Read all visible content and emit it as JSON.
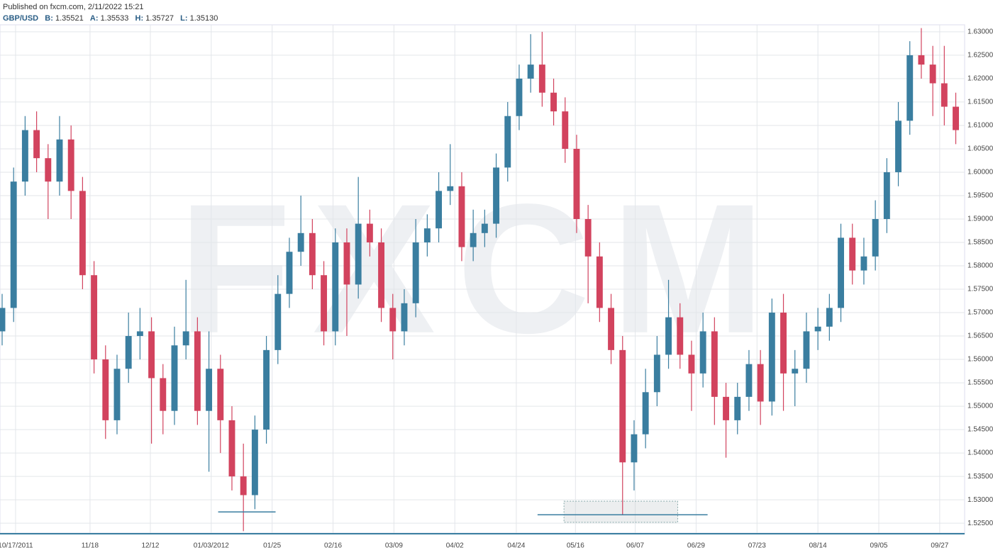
{
  "header": {
    "published": "Published on fxcm.com, 2/11/2022 15:21",
    "symbol": "GBP/USD",
    "bid_label": "B:",
    "bid": "1.35521",
    "ask_label": "A:",
    "ask": "1.35533",
    "high_label": "H:",
    "high": "1.35727",
    "low_label": "L:",
    "low": "1.35130"
  },
  "chart_data": {
    "type": "candlestick",
    "watermark": "FXCM",
    "up_color": "#3a7ea0",
    "down_color": "#d2435e",
    "grid": true,
    "xlim": [
      -0.185,
      83.77
    ],
    "xticks": [
      {
        "value": 1.17,
        "label": "10/17/2011"
      },
      {
        "value": 7.65,
        "label": "11/18"
      },
      {
        "value": 12.9,
        "label": "12/12"
      },
      {
        "value": 18.2,
        "label": "01/03/2012"
      },
      {
        "value": 23.5,
        "label": "01/25"
      },
      {
        "value": 28.8,
        "label": "02/16"
      },
      {
        "value": 34.1,
        "label": "03/09"
      },
      {
        "value": 39.4,
        "label": "04/02"
      },
      {
        "value": 44.75,
        "label": "04/24"
      },
      {
        "value": 49.9,
        "label": "05/16"
      },
      {
        "value": 55.1,
        "label": "06/07"
      },
      {
        "value": 60.4,
        "label": "06/29"
      },
      {
        "value": 65.7,
        "label": "07/23"
      },
      {
        "value": 71.0,
        "label": "08/14"
      },
      {
        "value": 76.3,
        "label": "09/05"
      },
      {
        "value": 81.6,
        "label": "09/27"
      }
    ],
    "ylim": [
      1.5229,
      1.6315
    ],
    "yticks": [
      {
        "value": 1.525,
        "label": "1.52500"
      },
      {
        "value": 1.53,
        "label": "1.53000"
      },
      {
        "value": 1.535,
        "label": "1.53500"
      },
      {
        "value": 1.54,
        "label": "1.54000"
      },
      {
        "value": 1.545,
        "label": "1.54500"
      },
      {
        "value": 1.55,
        "label": "1.55000"
      },
      {
        "value": 1.555,
        "label": "1.55500"
      },
      {
        "value": 1.56,
        "label": "1.56000"
      },
      {
        "value": 1.565,
        "label": "1.56500"
      },
      {
        "value": 1.57,
        "label": "1.57000"
      },
      {
        "value": 1.575,
        "label": "1.57500"
      },
      {
        "value": 1.58,
        "label": "1.58000"
      },
      {
        "value": 1.585,
        "label": "1.58500"
      },
      {
        "value": 1.59,
        "label": "1.59000"
      },
      {
        "value": 1.595,
        "label": "1.59500"
      },
      {
        "value": 1.6,
        "label": "1.60000"
      },
      {
        "value": 1.605,
        "label": "1.60500"
      },
      {
        "value": 1.61,
        "label": "1.61000"
      },
      {
        "value": 1.615,
        "label": "1.61500"
      },
      {
        "value": 1.62,
        "label": "1.62000"
      },
      {
        "value": 1.625,
        "label": "1.62500"
      },
      {
        "value": 1.63,
        "label": "1.63000"
      }
    ],
    "open": [
      1.566,
      1.571,
      1.598,
      1.609,
      1.603,
      1.598,
      1.607,
      1.596,
      1.578,
      1.56,
      1.547,
      1.558,
      1.565,
      1.566,
      1.556,
      1.549,
      1.563,
      1.566,
      1.549,
      1.558,
      1.547,
      1.535,
      1.531,
      1.545,
      1.562,
      1.574,
      1.583,
      1.587,
      1.578,
      1.566,
      1.585,
      1.576,
      1.589,
      1.585,
      1.571,
      1.566,
      1.572,
      1.585,
      1.588,
      1.596,
      1.597,
      1.584,
      1.587,
      1.589,
      1.601,
      1.612,
      1.62,
      1.623,
      1.617,
      1.613,
      1.605,
      1.59,
      1.582,
      1.571,
      1.562,
      1.538,
      1.544,
      1.553,
      1.561,
      1.569,
      1.561,
      1.557,
      1.566,
      1.552,
      1.547,
      1.552,
      1.559,
      1.551,
      1.57,
      1.557,
      1.558,
      1.566,
      1.567,
      1.571,
      1.586,
      1.579,
      1.582,
      1.59,
      1.6,
      1.611,
      1.625,
      1.623,
      1.619,
      1.614
    ],
    "high": [
      1.574,
      1.601,
      1.612,
      1.613,
      1.606,
      1.612,
      1.61,
      1.599,
      1.581,
      1.563,
      1.561,
      1.57,
      1.571,
      1.569,
      1.559,
      1.567,
      1.577,
      1.569,
      1.566,
      1.561,
      1.55,
      1.542,
      1.548,
      1.565,
      1.578,
      1.586,
      1.595,
      1.59,
      1.581,
      1.588,
      1.588,
      1.599,
      1.592,
      1.588,
      1.574,
      1.575,
      1.59,
      1.591,
      1.6,
      1.606,
      1.6,
      1.592,
      1.592,
      1.604,
      1.615,
      1.623,
      1.6295,
      1.63,
      1.62,
      1.616,
      1.608,
      1.593,
      1.585,
      1.574,
      1.565,
      1.547,
      1.558,
      1.565,
      1.577,
      1.572,
      1.564,
      1.57,
      1.569,
      1.555,
      1.555,
      1.562,
      1.562,
      1.573,
      1.574,
      1.562,
      1.57,
      1.571,
      1.574,
      1.589,
      1.589,
      1.586,
      1.594,
      1.603,
      1.615,
      1.628,
      1.6308,
      1.627,
      1.627,
      1.617
    ],
    "low": [
      1.563,
      1.568,
      1.595,
      1.6,
      1.59,
      1.595,
      1.59,
      1.575,
      1.557,
      1.543,
      1.544,
      1.555,
      1.56,
      1.542,
      1.544,
      1.546,
      1.56,
      1.546,
      1.536,
      1.54,
      1.532,
      1.5233,
      1.528,
      1.542,
      1.559,
      1.571,
      1.58,
      1.575,
      1.563,
      1.563,
      1.565,
      1.573,
      1.582,
      1.568,
      1.56,
      1.563,
      1.569,
      1.582,
      1.585,
      1.593,
      1.581,
      1.581,
      1.584,
      1.586,
      1.598,
      1.609,
      1.617,
      1.614,
      1.61,
      1.602,
      1.587,
      1.572,
      1.568,
      1.559,
      1.5268,
      1.532,
      1.541,
      1.55,
      1.558,
      1.558,
      1.549,
      1.554,
      1.546,
      1.539,
      1.544,
      1.549,
      1.546,
      1.548,
      1.549,
      1.55,
      1.555,
      1.562,
      1.564,
      1.568,
      1.576,
      1.576,
      1.579,
      1.587,
      1.597,
      1.608,
      1.62,
      1.612,
      1.61,
      1.606
    ],
    "close": [
      1.571,
      1.598,
      1.609,
      1.603,
      1.598,
      1.607,
      1.596,
      1.578,
      1.56,
      1.547,
      1.558,
      1.565,
      1.566,
      1.556,
      1.549,
      1.563,
      1.566,
      1.549,
      1.558,
      1.547,
      1.535,
      1.531,
      1.545,
      1.562,
      1.574,
      1.583,
      1.587,
      1.578,
      1.566,
      1.585,
      1.576,
      1.589,
      1.585,
      1.571,
      1.566,
      1.572,
      1.585,
      1.588,
      1.596,
      1.597,
      1.584,
      1.587,
      1.589,
      1.601,
      1.612,
      1.62,
      1.623,
      1.617,
      1.613,
      1.605,
      1.59,
      1.582,
      1.571,
      1.562,
      1.538,
      1.544,
      1.553,
      1.561,
      1.569,
      1.561,
      1.557,
      1.566,
      1.552,
      1.547,
      1.552,
      1.559,
      1.551,
      1.57,
      1.557,
      1.558,
      1.566,
      1.567,
      1.571,
      1.586,
      1.579,
      1.582,
      1.59,
      1.6,
      1.611,
      1.625,
      1.623,
      1.619,
      1.614,
      1.609
    ],
    "hlines": [
      {
        "y": 1.5274,
        "x": [
          18.8,
          23.8
        ]
      },
      {
        "y": 1.5268,
        "x": [
          46.6,
          61.4
        ]
      }
    ],
    "box": {
      "x": [
        48.9,
        58.8
      ],
      "y": [
        1.5252,
        1.5297
      ]
    }
  }
}
